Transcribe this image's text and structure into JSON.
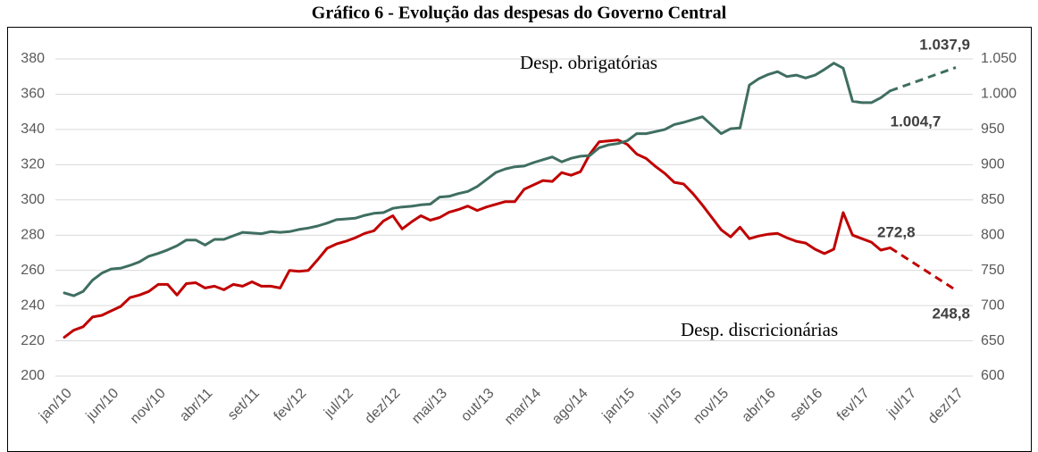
{
  "chart_data": {
    "type": "line",
    "title": "Gráfico 6 - Evolução das despesas do Governo Central",
    "categories": [
      "jan/10",
      null,
      null,
      null,
      null,
      "jun/10",
      null,
      null,
      null,
      null,
      "nov/10",
      null,
      null,
      null,
      null,
      "abr/11",
      null,
      null,
      null,
      null,
      "set/11",
      null,
      null,
      null,
      null,
      "fev/12",
      null,
      null,
      null,
      null,
      "jul/12",
      null,
      null,
      null,
      null,
      "dez/12",
      null,
      null,
      null,
      null,
      "mai/13",
      null,
      null,
      null,
      null,
      "out/13",
      null,
      null,
      null,
      null,
      "mar/14",
      null,
      null,
      null,
      null,
      "ago/14",
      null,
      null,
      null,
      null,
      "jan/15",
      null,
      null,
      null,
      null,
      "jun/15",
      null,
      null,
      null,
      null,
      "nov/15",
      null,
      null,
      null,
      null,
      "abr/16",
      null,
      null,
      null,
      null,
      "set/16",
      null,
      null,
      null,
      null,
      "fev/17",
      null,
      null,
      null,
      null,
      "jul/17",
      null,
      null,
      null,
      null,
      "dez/17"
    ],
    "series": [
      {
        "name": "Desp. discricionárias",
        "color": "#c00000",
        "gap_style": "dashed",
        "values": [
          222,
          226,
          228,
          233.5,
          234.5,
          237,
          239.5,
          244.5,
          246,
          248,
          252,
          252,
          246,
          252.5,
          253,
          250,
          251,
          249,
          252,
          251,
          253.5,
          251,
          251,
          250,
          260,
          259.5,
          260,
          266,
          272.5,
          275,
          276.5,
          278.5,
          281,
          282.5,
          288,
          291,
          283.5,
          287.5,
          291,
          288.5,
          290,
          293,
          294.5,
          296.5,
          294,
          296,
          297.5,
          299,
          299,
          306,
          308.5,
          311,
          310.5,
          315.5,
          314,
          316,
          326,
          333,
          333.5,
          334,
          331.5,
          326,
          323.5,
          319,
          315,
          310,
          309,
          303.5,
          297,
          290,
          283,
          279,
          284.5,
          278,
          279.5,
          280.5,
          281,
          278.5,
          276.5,
          275.5,
          272,
          269.5,
          272,
          292.8,
          280,
          278,
          276,
          271.5,
          272.8,
          null,
          null,
          null,
          null,
          null,
          null,
          248.8
        ],
        "value_labels": [
          null,
          null,
          null,
          null,
          null,
          null,
          null,
          null,
          null,
          null,
          null,
          null,
          null,
          null,
          null,
          null,
          null,
          null,
          null,
          null,
          null,
          null,
          null,
          null,
          null,
          null,
          null,
          null,
          null,
          null,
          null,
          null,
          null,
          null,
          null,
          null,
          null,
          null,
          null,
          null,
          null,
          null,
          null,
          null,
          null,
          null,
          null,
          null,
          null,
          null,
          null,
          null,
          null,
          null,
          null,
          null,
          null,
          null,
          null,
          null,
          null,
          null,
          null,
          null,
          null,
          null,
          null,
          null,
          null,
          null,
          null,
          null,
          null,
          null,
          null,
          null,
          null,
          null,
          null,
          null,
          null,
          null,
          null,
          null,
          null,
          null,
          null,
          null,
          "272,8",
          null,
          null,
          null,
          null,
          null,
          null,
          "248,8"
        ]
      },
      {
        "name": "Desp. obrigatórias",
        "color": "#3f6e61",
        "axis": "y2",
        "gap_style": "dashed",
        "values": [
          718,
          714,
          720,
          736,
          746,
          752,
          753,
          757,
          762,
          770,
          774,
          779,
          785,
          793,
          793,
          786,
          794,
          794,
          799,
          804,
          803,
          802,
          805,
          804,
          805,
          808,
          810,
          813,
          817,
          822,
          823,
          824,
          828,
          831,
          832,
          838,
          840,
          841,
          843,
          844,
          854,
          855,
          859,
          862,
          869,
          879,
          889,
          894,
          897,
          898,
          903,
          907,
          911,
          904,
          909,
          912,
          913,
          924,
          928,
          930,
          934,
          944,
          944,
          947,
          950,
          957,
          960,
          964,
          968,
          956,
          944,
          951,
          952,
          1013,
          1022,
          1028,
          1032,
          1025,
          1027,
          1023,
          1027,
          1035,
          1044,
          1037,
          990,
          988,
          988,
          995,
          1004.7,
          null,
          null,
          null,
          null,
          null,
          null,
          1037.9
        ],
        "value_labels": [
          null,
          null,
          null,
          null,
          null,
          null,
          null,
          null,
          null,
          null,
          null,
          null,
          null,
          null,
          null,
          null,
          null,
          null,
          null,
          null,
          null,
          null,
          null,
          null,
          null,
          null,
          null,
          null,
          null,
          null,
          null,
          null,
          null,
          null,
          null,
          null,
          null,
          null,
          null,
          null,
          null,
          null,
          null,
          null,
          null,
          null,
          null,
          null,
          null,
          null,
          null,
          null,
          null,
          null,
          null,
          null,
          null,
          null,
          null,
          null,
          null,
          null,
          null,
          null,
          null,
          null,
          null,
          null,
          null,
          null,
          null,
          null,
          null,
          null,
          null,
          null,
          null,
          null,
          null,
          null,
          null,
          null,
          null,
          null,
          null,
          null,
          null,
          null,
          "1.004,7",
          null,
          null,
          null,
          null,
          null,
          null,
          "1.037,9"
        ]
      }
    ],
    "ylim": [
      200,
      380
    ],
    "yticks": [
      200,
      220,
      240,
      260,
      280,
      300,
      320,
      340,
      360,
      380
    ],
    "y2lim": [
      600,
      1050
    ],
    "y2ticks": [
      600,
      650,
      700,
      750,
      800,
      850,
      900,
      950,
      {
        "value": 1000,
        "label": "1.000"
      },
      {
        "value": 1050,
        "label": "1.050"
      }
    ],
    "grid": true,
    "legend": "inline"
  }
}
